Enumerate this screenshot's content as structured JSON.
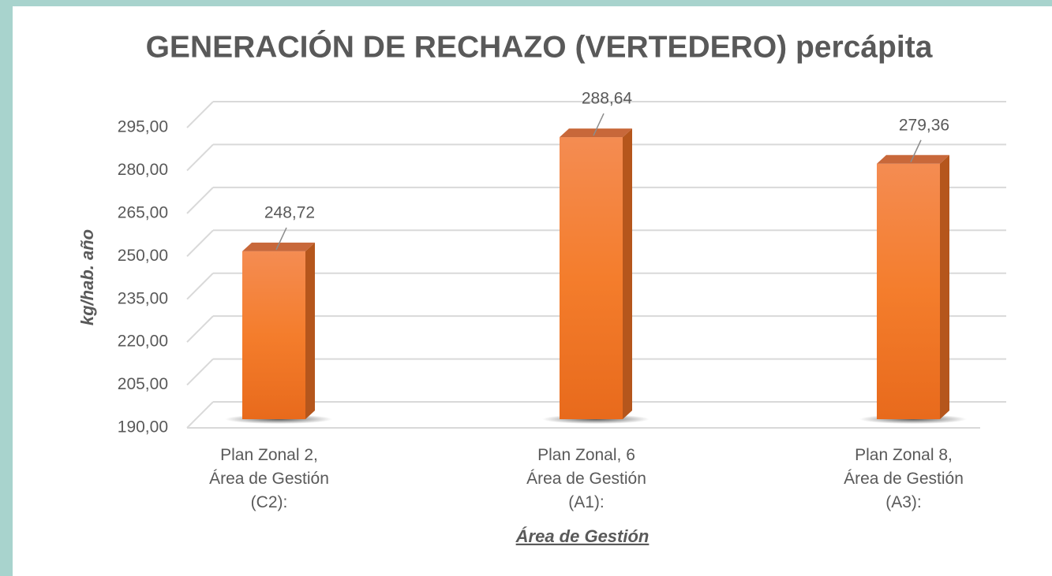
{
  "chart_data": {
    "type": "bar3d",
    "title": "GENERACIÓN DE RECHAZO (VERTEDERO) percápita",
    "y_label": "kg/hab. año",
    "x_label": "Área de Gestión",
    "categories": [
      "Plan Zonal 2,\nÁrea de Gestión\n(C2):",
      "Plan Zonal, 6\nÁrea de Gestión\n(A1):",
      "Plan Zonal 8,\nÁrea de Gestión\n(A3):"
    ],
    "values": [
      248.72,
      288.64,
      279.36
    ],
    "value_labels": [
      "248,72",
      "288,64",
      "279,36"
    ],
    "color": "#f47d2c",
    "ylim": [
      190,
      295
    ],
    "yticks": [
      {
        "value": 190,
        "label": "190,00"
      },
      {
        "value": 205,
        "label": "205,00"
      },
      {
        "value": 220,
        "label": "220,00"
      },
      {
        "value": 235,
        "label": "235,00"
      },
      {
        "value": 250,
        "label": "250,00"
      },
      {
        "value": 265,
        "label": "265,00"
      },
      {
        "value": 280,
        "label": "280,00"
      },
      {
        "value": 295,
        "label": "295,00"
      }
    ],
    "grid": true
  }
}
